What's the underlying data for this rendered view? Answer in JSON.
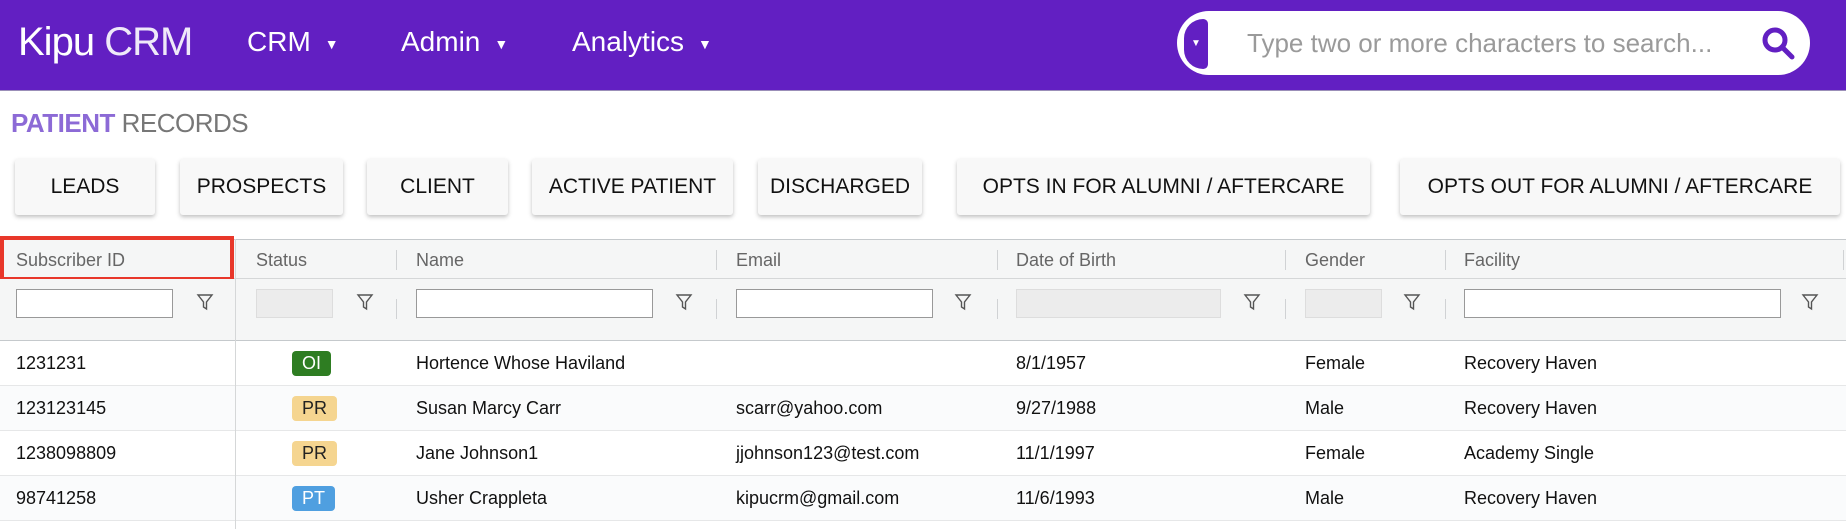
{
  "nav": {
    "logo_bold": "Kipu",
    "logo_light": "CRM",
    "menus": [
      "CRM",
      "Admin",
      "Analytics"
    ],
    "search_placeholder": "Type two or more characters to search...",
    "brand_color": "#621fc2"
  },
  "page": {
    "title_bold": "PATIENT",
    "title_light": "RECORDS"
  },
  "buttons": [
    "LEADS",
    "PROSPECTS",
    "CLIENT",
    "ACTIVE PATIENT",
    "DISCHARGED",
    "OPTS IN FOR ALUMNI / AFTERCARE",
    "OPTS OUT FOR ALUMNI / AFTERCARE"
  ],
  "table": {
    "columns": [
      "Subscriber ID",
      "Status",
      "Name",
      "Email",
      "Date of Birth",
      "Gender",
      "Facility"
    ],
    "highlighted_column": "Subscriber ID",
    "rows": [
      {
        "id": "1231231",
        "status": "OI",
        "status_color": "#2e7d22",
        "name": "Hortence Whose Haviland",
        "email": "",
        "dob": "8/1/1957",
        "gender": "Female",
        "facility": "Recovery Haven"
      },
      {
        "id": "123123145",
        "status": "PR",
        "status_color": "#f5d590",
        "name": "Susan Marcy Carr",
        "email": "scarr@yahoo.com",
        "dob": "9/27/1988",
        "gender": "Male",
        "facility": "Recovery Haven"
      },
      {
        "id": "1238098809",
        "status": "PR",
        "status_color": "#f5d590",
        "name": "Jane Johnson1",
        "email": "jjohnson123@test.com",
        "dob": "11/1/1997",
        "gender": "Female",
        "facility": "Academy Single"
      },
      {
        "id": "98741258",
        "status": "PT",
        "status_color": "#4f9fe0",
        "name": "Usher Crappleta",
        "email": "kipucrm@gmail.com",
        "dob": "11/6/1993",
        "gender": "Male",
        "facility": "Recovery Haven"
      }
    ]
  }
}
